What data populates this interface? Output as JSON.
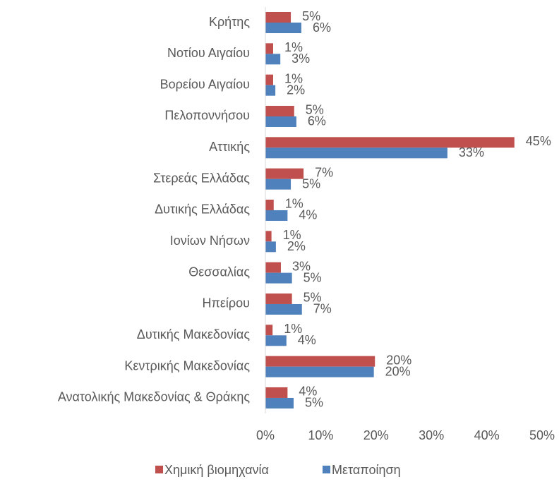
{
  "chart_data": {
    "type": "bar",
    "orientation": "horizontal",
    "categories": [
      "Κρήτης",
      "Νοτίου Αιγαίου",
      "Βορείου Αιγαίου",
      "Πελοποννήσου",
      "Αττικής",
      "Στερεάς Ελλάδας",
      "Δυτικής Ελλάδας",
      "Ιονίων Νήσων",
      "Θεσσαλίας",
      "Ηπείρου",
      "Δυτικής Μακεδονίας",
      "Κεντρικής Μακεδονίας",
      "Ανατολικής Μακεδονίας & Θράκης"
    ],
    "series": [
      {
        "name": "Χημική βιομηχανία",
        "color": "#c0504d",
        "values": [
          4.6,
          1.4,
          1.4,
          5.2,
          45,
          6.9,
          1.5,
          1.1,
          2.8,
          4.8,
          1.3,
          19.8,
          4.0
        ],
        "value_labels": [
          "5%",
          "1%",
          "1%",
          "5%",
          "45%",
          "7%",
          "1%",
          "1%",
          "3%",
          "5%",
          "1%",
          "20%",
          "4%"
        ]
      },
      {
        "name": "Μεταποίηση",
        "color": "#4f81bd",
        "values": [
          6.5,
          2.7,
          1.8,
          5.6,
          32.9,
          4.6,
          4.0,
          1.9,
          4.8,
          6.6,
          3.8,
          19.6,
          5.1
        ],
        "value_labels": [
          "6%",
          "3%",
          "2%",
          "6%",
          "33%",
          "5%",
          "4%",
          "2%",
          "5%",
          "7%",
          "4%",
          "20%",
          "5%"
        ]
      }
    ],
    "xlim": [
      0,
      50
    ],
    "xticks": [
      {
        "value": 0,
        "label": "0%"
      },
      {
        "value": 10,
        "label": "10%"
      },
      {
        "value": 20,
        "label": "20%"
      },
      {
        "value": 30,
        "label": "30%"
      },
      {
        "value": 40,
        "label": "40%"
      },
      {
        "value": 50,
        "label": "50%"
      }
    ],
    "legend": "bottom"
  }
}
